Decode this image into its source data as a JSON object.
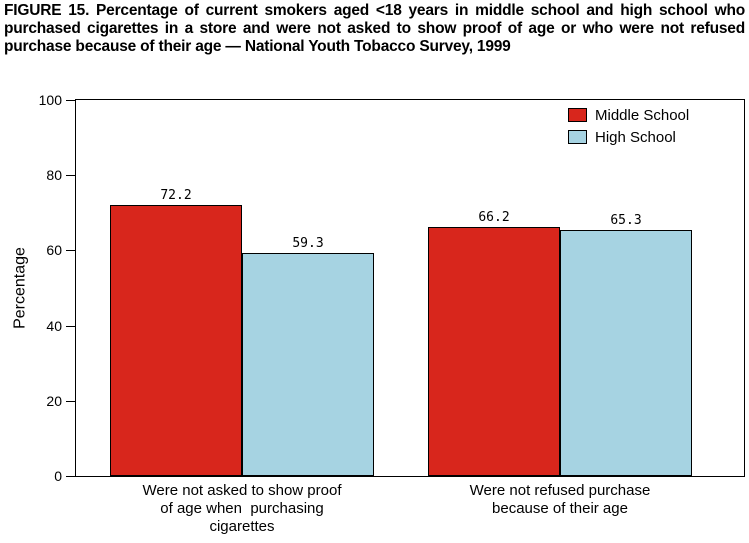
{
  "figure": {
    "title": "FIGURE 15. Percentage of current smokers aged <18 years in middle school and high school who purchased cigarettes in a store and were not asked to show proof of age or who were not refused purchase because of their age — National Youth Tobacco Survey, 1999"
  },
  "chart_data": {
    "type": "bar",
    "title": "FIGURE 15. Percentage of current smokers aged <18 years in middle school and high school who purchased cigarettes in a store and were not asked to show proof of age or who were not refused purchase because of their age — National Youth Tobacco Survey, 1999",
    "categories": [
      "Were not asked to show proof of age when purchasing cigarettes",
      "Were not refused purchase because of their age"
    ],
    "category_labels": [
      "Were not asked to show proof\nof age when  purchasing\ncigarettes",
      "Were not refused purchase\nbecause of their age"
    ],
    "series": [
      {
        "name": "Middle School",
        "color": "#d8261c",
        "values": [
          72.2,
          66.2
        ]
      },
      {
        "name": "High School",
        "color": "#a6d3e2",
        "values": [
          59.3,
          65.3
        ]
      }
    ],
    "value_labels": [
      [
        "72.2",
        "66.2"
      ],
      [
        "59.3",
        "65.3"
      ]
    ],
    "ylabel": "Percentage",
    "ylim": [
      0,
      100
    ],
    "yticks": [
      0,
      20,
      40,
      60,
      80,
      100
    ],
    "legend_position": "top-right",
    "grid": false
  }
}
